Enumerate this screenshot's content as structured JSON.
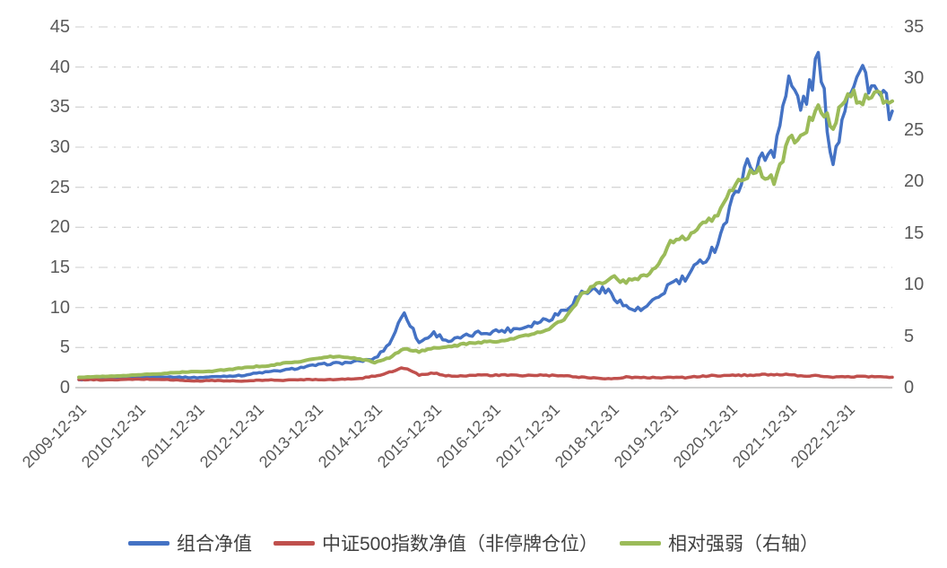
{
  "chart_data": {
    "type": "line",
    "title": "",
    "xlabel": "",
    "ylabel_left": "",
    "ylabel_right": "",
    "grid": "horizontal-dash-dot",
    "legend_position": "bottom",
    "left_axis": {
      "min": 0,
      "max": 45,
      "ticks": [
        45,
        40,
        35,
        30,
        25,
        20,
        15,
        10,
        5,
        0
      ]
    },
    "right_axis": {
      "min": 0,
      "max": 35,
      "ticks": [
        35,
        30,
        25,
        20,
        15,
        10,
        5,
        0
      ]
    },
    "x_tick_labels": [
      "2009-12-31",
      "2010-12-31",
      "2011-12-31",
      "2012-12-31",
      "2013-12-31",
      "2014-12-31",
      "2015-12-31",
      "2016-12-31",
      "2017-12-31",
      "2018-12-31",
      "2019-12-31",
      "2020-12-31",
      "2021-12-31",
      "2022-12-31"
    ],
    "x": [
      "2009-12",
      "2010-03",
      "2010-06",
      "2010-09",
      "2010-12",
      "2011-03",
      "2011-06",
      "2011-09",
      "2011-12",
      "2012-03",
      "2012-06",
      "2012-09",
      "2012-12",
      "2013-03",
      "2013-06",
      "2013-09",
      "2013-12",
      "2014-03",
      "2014-06",
      "2014-09",
      "2014-12",
      "2015-03",
      "2015-06",
      "2015-09",
      "2015-12",
      "2016-03",
      "2016-06",
      "2016-09",
      "2016-12",
      "2017-03",
      "2017-06",
      "2017-09",
      "2017-12",
      "2018-03",
      "2018-06",
      "2018-09",
      "2018-12",
      "2019-03",
      "2019-06",
      "2019-09",
      "2019-12",
      "2020-03",
      "2020-06",
      "2020-09",
      "2020-12",
      "2021-03",
      "2021-06",
      "2021-09",
      "2021-12",
      "2022-03",
      "2022-06",
      "2022-09",
      "2022-12",
      "2023-03",
      "2023-06",
      "2023-09"
    ],
    "series": [
      {
        "name": "组合净值",
        "axis": "left",
        "color": "#4472C4",
        "width": 3.5,
        "wiggle": 0.045,
        "values": [
          1.0,
          1.0,
          1.05,
          1.15,
          1.3,
          1.35,
          1.35,
          1.3,
          1.25,
          1.35,
          1.45,
          1.5,
          1.8,
          2.0,
          2.2,
          2.5,
          2.8,
          3.0,
          3.1,
          3.3,
          3.6,
          5.5,
          9.5,
          5.6,
          6.8,
          5.8,
          6.3,
          6.8,
          7.0,
          7.2,
          7.5,
          8.2,
          8.8,
          10.0,
          11.8,
          12.3,
          11.8,
          10.0,
          9.6,
          10.8,
          13.0,
          13.5,
          15.5,
          17.5,
          22.0,
          27.5,
          28.0,
          30.0,
          38.0,
          35.0,
          41.0,
          28.0,
          37.5,
          39.5,
          36.5,
          34.5
        ]
      },
      {
        "name": "中证500指数净值（非停牌仓位）",
        "axis": "left",
        "color": "#C0504D",
        "width": 3.5,
        "wiggle": 0.05,
        "values": [
          1.0,
          1.0,
          0.95,
          1.0,
          1.05,
          1.05,
          1.0,
          0.9,
          0.82,
          0.9,
          0.85,
          0.8,
          0.9,
          0.95,
          0.92,
          1.0,
          1.02,
          1.0,
          1.05,
          1.15,
          1.45,
          1.9,
          2.5,
          1.55,
          1.8,
          1.45,
          1.5,
          1.55,
          1.55,
          1.55,
          1.5,
          1.55,
          1.5,
          1.45,
          1.3,
          1.2,
          1.1,
          1.3,
          1.25,
          1.25,
          1.3,
          1.25,
          1.4,
          1.5,
          1.5,
          1.55,
          1.6,
          1.65,
          1.6,
          1.4,
          1.5,
          1.3,
          1.35,
          1.4,
          1.35,
          1.3
        ]
      },
      {
        "name": "相对强弱（右轴）",
        "axis": "right",
        "color": "#9BBB59",
        "width": 4,
        "wiggle": 0.022,
        "values": [
          1.0,
          1.05,
          1.1,
          1.15,
          1.25,
          1.3,
          1.4,
          1.5,
          1.55,
          1.6,
          1.75,
          1.9,
          2.05,
          2.15,
          2.4,
          2.55,
          2.8,
          3.0,
          2.95,
          2.8,
          2.45,
          2.9,
          3.8,
          3.5,
          3.8,
          4.0,
          4.2,
          4.4,
          4.5,
          4.6,
          5.0,
          5.3,
          5.9,
          6.9,
          9.0,
          10.0,
          10.7,
          10.3,
          10.8,
          11.5,
          14.0,
          14.5,
          15.5,
          16.5,
          19.0,
          20.5,
          21.0,
          20.0,
          24.0,
          24.5,
          27.5,
          25.5,
          28.5,
          28.0,
          28.5,
          27.8
        ]
      }
    ]
  },
  "colors": {
    "gridline": "#D6D6D6",
    "axis_line": "#BFBFBF",
    "axis_text": "#595959",
    "legend_text": "#404040"
  }
}
